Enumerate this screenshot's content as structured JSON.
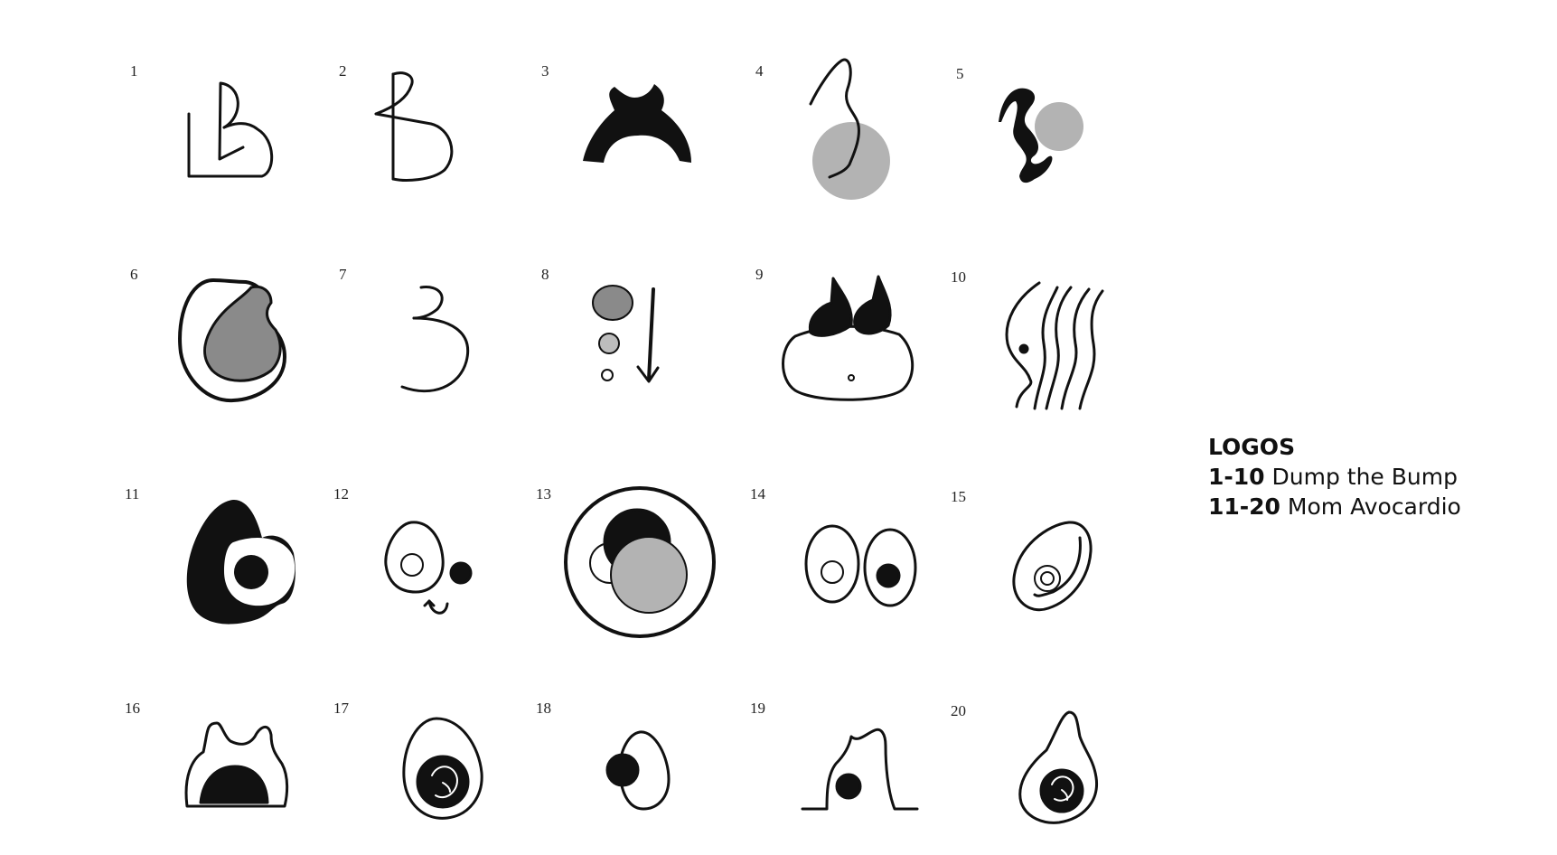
{
  "legend": {
    "title": "LOGOS",
    "lines": [
      {
        "range": "1-10",
        "name": "Dump the Bump"
      },
      {
        "range": "11-20",
        "name": "Mom Avocardio"
      }
    ]
  },
  "logos": [
    {
      "number": "1",
      "icon": "letter-b-block-icon"
    },
    {
      "number": "2",
      "icon": "letter-b-script-icon"
    },
    {
      "number": "3",
      "icon": "torso-arch-icon"
    },
    {
      "number": "4",
      "icon": "profile-line-bump-icon"
    },
    {
      "number": "5",
      "icon": "silhouette-bump-icon"
    },
    {
      "number": "6",
      "icon": "pregnant-belly-icon"
    },
    {
      "number": "7",
      "icon": "numeral-three-icon"
    },
    {
      "number": "8",
      "icon": "shrinking-circles-arrow-icon"
    },
    {
      "number": "9",
      "icon": "belly-top-view-icon"
    },
    {
      "number": "10",
      "icon": "wavy-lines-profile-icon"
    },
    {
      "number": "11",
      "icon": "solid-avocado-icon"
    },
    {
      "number": "12",
      "icon": "avocado-face-icon"
    },
    {
      "number": "13",
      "icon": "avocado-ring-icon"
    },
    {
      "number": "14",
      "icon": "avocado-halves-icon"
    },
    {
      "number": "15",
      "icon": "avocado-ring-seed-icon"
    },
    {
      "number": "16",
      "icon": "belly-arch-icon"
    },
    {
      "number": "17",
      "icon": "avocado-baby-icon"
    },
    {
      "number": "18",
      "icon": "avocado-seed-side-icon"
    },
    {
      "number": "19",
      "icon": "silhouette-seed-icon"
    },
    {
      "number": "20",
      "icon": "avocado-baby-tall-icon"
    }
  ],
  "colors": {
    "ink": "#111111",
    "grey": "#8a8a8a",
    "light_grey": "#b3b3b3"
  }
}
